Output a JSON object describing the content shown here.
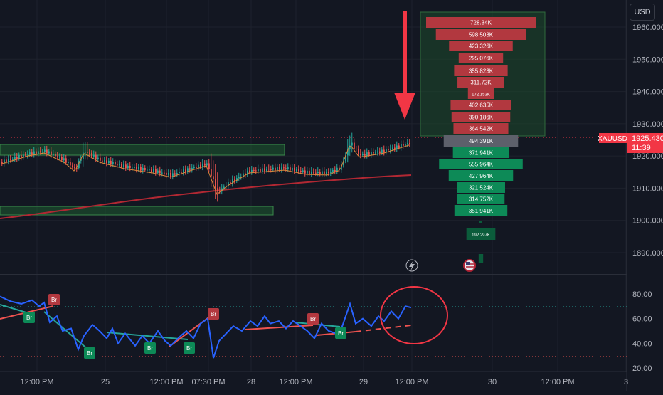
{
  "currency_button": "USD",
  "price_axis": {
    "ticks": [
      {
        "label": "1960.000",
        "value": 1960
      },
      {
        "label": "1950.000",
        "value": 1950
      },
      {
        "label": "1940.000",
        "value": 1940
      },
      {
        "label": "1930.000",
        "value": 1930
      },
      {
        "label": "1920.000",
        "value": 1920
      },
      {
        "label": "1910.000",
        "value": 1910
      },
      {
        "label": "1900.000",
        "value": 1900
      },
      {
        "label": "1890.000",
        "value": 1890
      }
    ],
    "current_symbol": "XAUUSD",
    "current_price": "1925.430",
    "countdown": "11:39",
    "current_value": 1925.43
  },
  "indicator_axis": {
    "ticks": [
      {
        "label": "80.00",
        "value": 80
      },
      {
        "label": "60.00",
        "value": 60
      },
      {
        "label": "40.00",
        "value": 40
      },
      {
        "label": "20.00",
        "value": 20
      }
    ],
    "upper_band": 70,
    "lower_band": 30
  },
  "time_axis": [
    "12:00 PM",
    "25",
    "12:00 PM",
    "07:30 PM",
    "28",
    "12:00 PM",
    "29",
    "12:00 PM",
    "30",
    "12:00 PM",
    "3"
  ],
  "volume_profile": {
    "sell_rows": [
      {
        "label": "728.34K",
        "value": 728.34
      },
      {
        "label": "598.503K",
        "value": 598.503
      },
      {
        "label": "423.326K",
        "value": 423.326
      },
      {
        "label": "295.076K",
        "value": 295.076
      },
      {
        "label": "355.823K",
        "value": 355.823
      },
      {
        "label": "311.72K",
        "value": 311.72
      },
      {
        "label": "172.153K",
        "value": 172.153
      },
      {
        "label": "402.635K",
        "value": 402.635
      },
      {
        "label": "390.186K",
        "value": 390.186
      },
      {
        "label": "364.542K",
        "value": 364.542
      }
    ],
    "mid_row": {
      "label": "494.391K",
      "value": 494.391
    },
    "buy_rows": [
      {
        "label": "371.941K",
        "value": 371.941
      },
      {
        "label": "555.964K",
        "value": 555.964
      },
      {
        "label": "427.964K",
        "value": 427.964
      },
      {
        "label": "321.524K",
        "value": 321.524
      },
      {
        "label": "314.752K",
        "value": 314.752
      },
      {
        "label": "351.941K",
        "value": 351.941
      },
      {
        "label": "",
        "value": 12
      },
      {
        "label": "192.297K",
        "value": 192.297
      },
      {
        "label": "",
        "value": 30
      }
    ]
  },
  "divergence_labels": [
    "Br",
    "Br",
    "Br",
    "Br",
    "Br",
    "Br",
    "Br",
    "Br"
  ],
  "colors": {
    "background": "#131722",
    "up": "#26a69a",
    "down": "#ef5350",
    "sell_bar": "#b2383f",
    "buy_bar": "#0d8a57",
    "indicator_line": "#2962ff",
    "annotation": "#f23645"
  }
}
